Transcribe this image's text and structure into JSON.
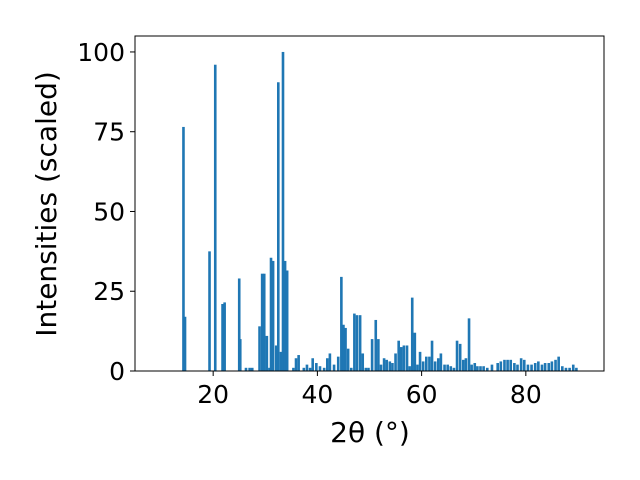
{
  "chart_data": {
    "type": "bar",
    "xlabel": "2θ (°)",
    "ylabel": "Intensities (scaled)",
    "xlim": [
      5,
      95
    ],
    "ylim": [
      0,
      105
    ],
    "xticks": [
      20,
      40,
      60,
      80
    ],
    "yticks": [
      0,
      25,
      50,
      75,
      100
    ],
    "grid": false,
    "bar_color": "#1f77b4",
    "bar_width": 0.5,
    "x": [
      14.3,
      14.6,
      19.3,
      20.4,
      21.8,
      22.2,
      25.0,
      25.2,
      26.3,
      27.0,
      27.5,
      28.9,
      29.4,
      29.8,
      30.3,
      30.8,
      31.1,
      31.5,
      32.1,
      32.5,
      33.0,
      33.4,
      33.8,
      34.2,
      35.4,
      35.9,
      36.4,
      37.4,
      38.0,
      38.6,
      39.1,
      39.8,
      40.5,
      41.3,
      41.9,
      42.4,
      43.2,
      44.0,
      44.6,
      45.0,
      45.4,
      45.9,
      46.5,
      47.1,
      47.6,
      48.2,
      48.7,
      49.3,
      49.8,
      50.5,
      51.2,
      51.7,
      52.2,
      52.8,
      53.3,
      53.9,
      54.4,
      55.0,
      55.6,
      56.1,
      56.6,
      57.2,
      57.7,
      58.2,
      58.7,
      59.2,
      59.7,
      60.3,
      60.9,
      61.5,
      62.0,
      62.6,
      63.2,
      63.7,
      64.4,
      65.0,
      65.6,
      66.2,
      66.8,
      67.4,
      68.0,
      68.5,
      69.1,
      69.6,
      70.2,
      70.7,
      71.3,
      71.9,
      72.6,
      73.5,
      74.6,
      75.2,
      75.9,
      76.5,
      77.1,
      77.8,
      78.4,
      79.1,
      79.7,
      80.4,
      81.1,
      81.8,
      82.4,
      83.1,
      83.7,
      84.4,
      85.0,
      85.7,
      86.3,
      87.0,
      87.7,
      88.4,
      89.1,
      89.7
    ],
    "values": [
      76.5,
      17,
      37.5,
      96,
      21,
      21.5,
      29,
      10,
      1,
      1,
      1,
      14,
      30.5,
      30.5,
      11,
      1,
      35.5,
      34.5,
      8,
      90.5,
      6,
      100,
      34.5,
      31.5,
      1,
      4,
      5,
      1,
      2,
      1,
      4,
      2.5,
      1.5,
      1,
      4,
      5.5,
      2,
      4.5,
      29.5,
      14.5,
      13.5,
      7,
      1,
      18,
      17.5,
      17.5,
      5.5,
      1,
      1,
      10,
      16,
      10,
      2,
      4,
      3.5,
      3,
      2.5,
      5.5,
      9.5,
      7.5,
      8,
      8,
      1.5,
      23,
      12,
      2,
      6,
      3,
      4.5,
      4.5,
      9.5,
      3,
      4,
      5.5,
      2,
      2,
      1.5,
      1,
      9.5,
      8.5,
      3.5,
      4,
      16.5,
      2,
      2.5,
      1.5,
      1.5,
      1.5,
      1,
      2,
      2.5,
      3,
      3.5,
      3.5,
      3.5,
      2.5,
      2,
      4,
      3.5,
      2,
      2,
      2.5,
      3,
      2,
      2.5,
      2.5,
      3,
      3.5,
      4.5,
      1.5,
      1,
      1,
      2,
      1
    ]
  }
}
